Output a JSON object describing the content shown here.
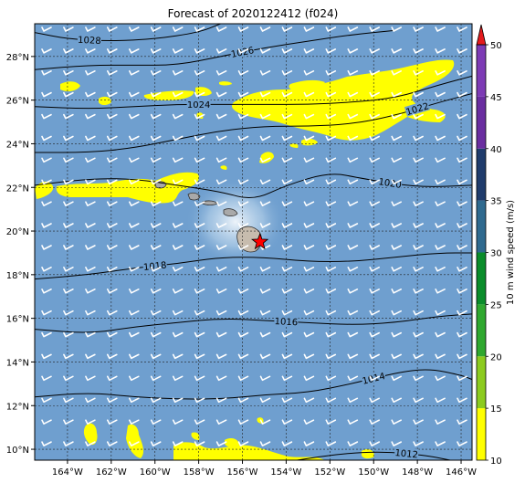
{
  "title": "Forecast of 2020122412 (f024)",
  "map": {
    "lon_range": [
      -165.5,
      -145.5
    ],
    "lat_range": [
      9.5,
      29.5
    ],
    "lon_ticks": [
      -164,
      -162,
      -160,
      -158,
      -156,
      -154,
      -152,
      -150,
      -148,
      -146
    ],
    "lat_ticks": [
      10,
      12,
      14,
      16,
      18,
      20,
      22,
      24,
      26,
      28
    ],
    "lon_tick_labels": [
      "164°W",
      "162°W",
      "160°W",
      "158°W",
      "156°W",
      "154°W",
      "152°W",
      "150°W",
      "148°W",
      "146°W"
    ],
    "lat_tick_labels": [
      "10°N",
      "12°N",
      "14°N",
      "16°N",
      "18°N",
      "20°N",
      "22°N",
      "24°N",
      "26°N",
      "28°N"
    ],
    "gridlines": "dotted",
    "ocean_color": "#6f9fcf",
    "highlight_color": "#ffff00",
    "storm_marker": {
      "symbol": "star",
      "color": "#ff0000",
      "lon": -155.2,
      "lat": 19.5
    },
    "islands": [
      "Kauai",
      "Oahu",
      "Molokai",
      "Maui",
      "Hawaii"
    ]
  },
  "isobars": [
    {
      "label": "1028",
      "points": [
        [
          -165.5,
          29.1
        ],
        [
          -164,
          28.8
        ],
        [
          -162,
          28.7
        ],
        [
          -160,
          28.8
        ],
        [
          -158,
          29.1
        ],
        [
          -157,
          29.5
        ]
      ]
    },
    {
      "label": "1026",
      "points": [
        [
          -165.5,
          27.4
        ],
        [
          -163,
          27.6
        ],
        [
          -161,
          27.6
        ],
        [
          -159,
          27.6
        ],
        [
          -157,
          28.0
        ],
        [
          -155,
          28.4
        ],
        [
          -153,
          28.7
        ],
        [
          -151,
          29.0
        ],
        [
          -149,
          29.2
        ]
      ]
    },
    {
      "label": "1024",
      "points": [
        [
          -165.5,
          25.7
        ],
        [
          -163,
          25.6
        ],
        [
          -161,
          25.7
        ],
        [
          -159,
          25.8
        ],
        [
          -157,
          25.8
        ],
        [
          -155,
          25.8
        ],
        [
          -153,
          25.8
        ],
        [
          -151,
          25.9
        ],
        [
          -149,
          26.1
        ],
        [
          -147,
          26.7
        ],
        [
          -145.5,
          27.1
        ]
      ]
    },
    {
      "label": "1022",
      "points": [
        [
          -165.5,
          23.6
        ],
        [
          -163,
          23.6
        ],
        [
          -161,
          23.8
        ],
        [
          -159,
          24.2
        ],
        [
          -157,
          24.6
        ],
        [
          -155,
          24.8
        ],
        [
          -153,
          24.8
        ],
        [
          -151,
          24.9
        ],
        [
          -149,
          25.3
        ],
        [
          -147,
          25.9
        ],
        [
          -145.5,
          26.3
        ]
      ]
    },
    {
      "label": "1020",
      "points": [
        [
          -165.5,
          22.1
        ],
        [
          -163,
          22.4
        ],
        [
          -161,
          22.4
        ],
        [
          -159,
          22.1
        ],
        [
          -157,
          21.8
        ],
        [
          -155.5,
          21.4
        ],
        [
          -154,
          22.1
        ],
        [
          -152,
          22.7
        ],
        [
          -150.5,
          22.4
        ],
        [
          -148,
          22.0
        ],
        [
          -145.5,
          22.1
        ]
      ]
    },
    {
      "label": "1018",
      "points": [
        [
          -165.5,
          17.8
        ],
        [
          -163,
          18.0
        ],
        [
          -161,
          18.3
        ],
        [
          -159,
          18.5
        ],
        [
          -157,
          18.8
        ],
        [
          -155,
          18.8
        ],
        [
          -153,
          18.6
        ],
        [
          -151,
          18.6
        ],
        [
          -149,
          18.8
        ],
        [
          -147,
          19.0
        ],
        [
          -145.5,
          19.0
        ]
      ]
    },
    {
      "label": "1016",
      "points": [
        [
          -165.5,
          15.5
        ],
        [
          -163,
          15.3
        ],
        [
          -161,
          15.6
        ],
        [
          -159,
          15.8
        ],
        [
          -157,
          16.0
        ],
        [
          -155,
          15.9
        ],
        [
          -153,
          15.8
        ],
        [
          -151,
          15.7
        ],
        [
          -149,
          15.8
        ],
        [
          -147,
          16.1
        ],
        [
          -145.5,
          16.2
        ]
      ]
    },
    {
      "label": "1014",
      "points": [
        [
          -165.5,
          12.4
        ],
        [
          -163,
          12.6
        ],
        [
          -161,
          12.4
        ],
        [
          -159,
          12.3
        ],
        [
          -157,
          12.3
        ],
        [
          -155,
          12.5
        ],
        [
          -153,
          12.6
        ],
        [
          -151,
          13.0
        ],
        [
          -149,
          13.5
        ],
        [
          -147.5,
          13.7
        ],
        [
          -146,
          13.4
        ],
        [
          -145.5,
          13.2
        ]
      ]
    },
    {
      "label": "1012",
      "points": [
        [
          -153.5,
          9.5
        ],
        [
          -151.5,
          9.8
        ],
        [
          -149.5,
          9.9
        ],
        [
          -147.5,
          9.7
        ],
        [
          -146.5,
          9.5
        ]
      ]
    }
  ],
  "wind_grid": {
    "lon_start": -165,
    "lon_step": 1,
    "lat_start": 10,
    "lat_step": 1,
    "direction_deg": 70,
    "color": "#ffffff"
  },
  "colorbar": {
    "label": "10 m wind speed (m/s)",
    "tick_labels": [
      "10",
      "15",
      "20",
      "25",
      "30",
      "35",
      "40",
      "45",
      "50"
    ],
    "min": 10,
    "max": 50,
    "segments": [
      {
        "from": 10,
        "to": 15,
        "color": "#ffff00"
      },
      {
        "from": 15,
        "to": 20,
        "color": "#8ccb1f"
      },
      {
        "from": 20,
        "to": 25,
        "color": "#2fa82f"
      },
      {
        "from": 25,
        "to": 30,
        "color": "#0a8c2a"
      },
      {
        "from": 30,
        "to": 35,
        "color": "#2f6a8f"
      },
      {
        "from": 35,
        "to": 40,
        "color": "#1f3c6c"
      },
      {
        "from": 40,
        "to": 45,
        "color": "#6a2ea0"
      },
      {
        "from": 45,
        "to": 50,
        "color": "#7d3bb5"
      }
    ],
    "extend_color": "#e41a1c"
  }
}
